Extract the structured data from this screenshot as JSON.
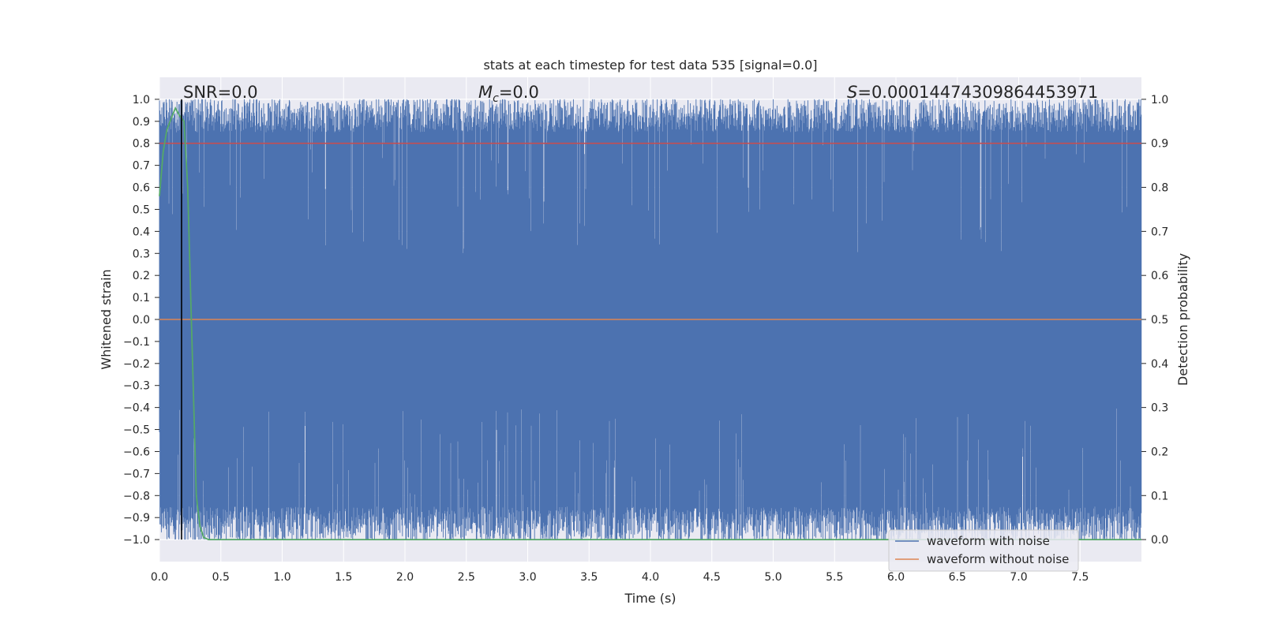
{
  "chart_data": {
    "type": "line",
    "title": "stats at each timestep for test data 535 [signal=0.0]",
    "xlabel": "Time (s)",
    "ylabel": "Whitened strain",
    "y2label": "Detection probability",
    "xlim": [
      0.0,
      8.0
    ],
    "ylim": [
      -1.1,
      1.1
    ],
    "y2lim": [
      -0.05,
      1.05
    ],
    "xticks": [
      "0.0",
      "0.5",
      "1.0",
      "1.5",
      "2.0",
      "2.5",
      "3.0",
      "3.5",
      "4.0",
      "4.5",
      "5.0",
      "5.5",
      "6.0",
      "6.5",
      "7.0",
      "7.5"
    ],
    "yticks": [
      "1.0",
      "0.9",
      "0.8",
      "0.7",
      "0.6",
      "0.5",
      "0.4",
      "0.3",
      "0.2",
      "0.1",
      "0.0",
      "−0.1",
      "−0.2",
      "−0.3",
      "−0.4",
      "−0.5",
      "−0.6",
      "−0.7",
      "−0.8",
      "−0.9",
      "−1.0"
    ],
    "y2ticks": [
      "1.0",
      "0.9",
      "0.8",
      "0.7",
      "0.6",
      "0.5",
      "0.4",
      "0.3",
      "0.2",
      "0.1",
      "0.0"
    ],
    "grid": true,
    "legend_position": "lower-right",
    "annotations": {
      "snr": "SNR=0.0",
      "mc_symbol": "M",
      "mc_sub": "c",
      "mc_value": "=0.0",
      "s_symbol": "S",
      "s_value": "=0.00014474309864453971"
    },
    "series": [
      {
        "name": "waveform with noise",
        "color": "#4c72b0",
        "kind": "noise",
        "envelope_min": -1.0,
        "envelope_max": 1.0,
        "typical_extent": 0.85
      },
      {
        "name": "waveform without noise",
        "color": "#dd8452",
        "kind": "constant",
        "value": 0.0
      }
    ],
    "detection_probability": {
      "color": "#55a868",
      "x": [
        0.0,
        0.03,
        0.06,
        0.1,
        0.13,
        0.17,
        0.2,
        0.23,
        0.26,
        0.3,
        0.33,
        0.36,
        0.4,
        8.0
      ],
      "y": [
        0.78,
        0.88,
        0.93,
        0.96,
        0.98,
        0.96,
        0.95,
        0.8,
        0.5,
        0.1,
        0.03,
        0.005,
        0.0,
        0.0
      ]
    },
    "threshold_line": {
      "color": "#c44e52",
      "y2": 0.9
    },
    "marker_line": {
      "color": "#000000",
      "x": 0.18
    }
  }
}
